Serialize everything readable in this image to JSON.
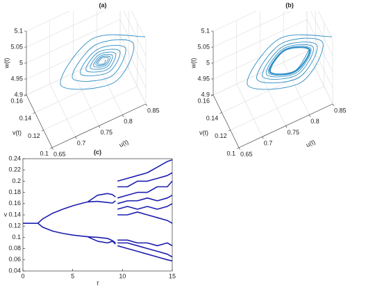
{
  "chart_data": [
    {
      "type": "line3d",
      "title": "(a)",
      "xlabel": "u(t)",
      "ylabel": "v(t)",
      "zlabel": "w(t)",
      "xlim": [
        0.65,
        0.85
      ],
      "ylim": [
        0.1,
        0.16
      ],
      "zlim": [
        4.9,
        5.1
      ],
      "xticks": [
        0.65,
        0.7,
        0.75,
        0.8,
        0.85
      ],
      "yticks": [
        0.1,
        0.12,
        0.14,
        0.16
      ],
      "zticks": [
        4.9,
        4.95,
        5,
        5.05,
        5.1
      ],
      "grid": true,
      "series": [
        {
          "color": "#2b8cc4",
          "x": [
            0.875,
            0.785,
            0.695,
            0.785,
            0.85,
            0.785,
            0.72,
            0.785,
            0.833,
            0.785,
            0.737,
            0.785,
            0.821,
            0.785,
            0.749,
            0.785,
            0.812,
            0.785,
            0.758,
            0.785,
            0.805,
            0.785,
            0.765,
            0.785,
            0.8,
            0.785,
            0.77,
            0.785,
            0.796,
            0.785,
            0.774,
            0.785,
            0.79
          ],
          "y": [
            0.129,
            0.154,
            0.129,
            0.104,
            0.129,
            0.147,
            0.129,
            0.111,
            0.129,
            0.142,
            0.129,
            0.116,
            0.129,
            0.139,
            0.129,
            0.119,
            0.129,
            0.1365,
            0.129,
            0.1215,
            0.129,
            0.1346,
            0.129,
            0.1234,
            0.129,
            0.1332,
            0.129,
            0.1248,
            0.129,
            0.1321,
            0.129,
            0.1259,
            0.129
          ],
          "z": [
            5.014,
            5,
            4.986,
            5,
            5.01,
            5,
            4.99,
            5,
            5.007,
            5,
            4.993,
            5,
            5.005,
            5,
            4.995,
            5,
            5.004,
            5,
            4.996,
            5,
            5.003,
            5,
            4.997,
            5,
            5.002,
            5,
            4.998,
            5,
            5.002,
            5,
            4.998,
            5,
            5
          ]
        }
      ]
    },
    {
      "type": "line3d",
      "title": "(b)",
      "xlabel": "u(t)",
      "ylabel": "v(t)",
      "zlabel": "w(t)",
      "xlim": [
        0.65,
        0.85
      ],
      "ylim": [
        0.1,
        0.16
      ],
      "zlim": [
        4.9,
        5.1
      ],
      "xticks": [
        0.65,
        0.7,
        0.75,
        0.8,
        0.85
      ],
      "yticks": [
        0.1,
        0.12,
        0.14,
        0.16
      ],
      "zticks": [
        4.9,
        4.95,
        5,
        5.05,
        5.1
      ],
      "grid": true,
      "series": [
        {
          "color": "#2b8cc4",
          "x": [
            0.875,
            0.785,
            0.695,
            0.785,
            0.855,
            0.785,
            0.715,
            0.785,
            0.843,
            0.785,
            0.727,
            0.785,
            0.835,
            0.785,
            0.735,
            0.785,
            0.83,
            0.785,
            0.74,
            0.785,
            0.828,
            0.785,
            0.742,
            0.785,
            0.827,
            0.785,
            0.743,
            0.785,
            0.826,
            0.785,
            0.744,
            0.785,
            0.826
          ],
          "y": [
            0.129,
            0.154,
            0.129,
            0.104,
            0.129,
            0.1486,
            0.129,
            0.1094,
            0.129,
            0.1452,
            0.129,
            0.1128,
            0.129,
            0.143,
            0.129,
            0.115,
            0.129,
            0.1416,
            0.129,
            0.1164,
            0.129,
            0.141,
            0.129,
            0.117,
            0.129,
            0.1408,
            0.129,
            0.1172,
            0.129,
            0.1405,
            0.129,
            0.1175,
            0.129
          ],
          "z": [
            5.014,
            5,
            4.986,
            5,
            5.01,
            5,
            4.99,
            5,
            5.009,
            5,
            4.991,
            5,
            5.008,
            5,
            4.992,
            5,
            5.007,
            5,
            4.993,
            5,
            5.006,
            5,
            4.994,
            5,
            5.006,
            5,
            4.994,
            5,
            5.006,
            5,
            4.994,
            5,
            5.006
          ]
        }
      ]
    },
    {
      "type": "bifurcation",
      "title": "(c)",
      "xlabel": "τ",
      "ylabel": "v",
      "xlim": [
        0,
        15
      ],
      "ylim": [
        0.04,
        0.24
      ],
      "xticks": [
        0,
        5,
        10,
        15
      ],
      "yticks": [
        0.04,
        0.06,
        0.08,
        0.1,
        0.12,
        0.14,
        0.16,
        0.18,
        0.2,
        0.22,
        0.24
      ],
      "series": [
        {
          "color": "#1c1cb0",
          "x": [
            0,
            1.5
          ],
          "values": [
            0.125,
            0.125
          ]
        },
        {
          "color": "#1c1cb0",
          "x": [
            1.5,
            2,
            3,
            4,
            5,
            6,
            6.5
          ],
          "values": [
            0.125,
            0.133,
            0.143,
            0.15,
            0.156,
            0.161,
            0.163
          ]
        },
        {
          "color": "#1c1cb0",
          "x": [
            1.5,
            2,
            3,
            4,
            5,
            6,
            6.5
          ],
          "values": [
            0.125,
            0.118,
            0.111,
            0.107,
            0.104,
            0.102,
            0.101
          ]
        },
        {
          "color": "#1c1cb0",
          "x": [
            6.5,
            7.5,
            8.5,
            9,
            9.3
          ],
          "values": [
            0.163,
            0.175,
            0.178,
            0.176,
            0.172
          ]
        },
        {
          "color": "#1c1cb0",
          "x": [
            6.5,
            7.5,
            8.5,
            9,
            9.3
          ],
          "values": [
            0.163,
            0.164,
            0.162,
            0.161,
            0.165
          ]
        },
        {
          "color": "#1c1cb0",
          "x": [
            6.5,
            7.5,
            8.5,
            9,
            9.3
          ],
          "values": [
            0.101,
            0.1,
            0.098,
            0.094,
            0.09
          ]
        },
        {
          "color": "#1c1cb0",
          "x": [
            6.5,
            7.5,
            8.5,
            9,
            9.3
          ],
          "values": [
            0.101,
            0.093,
            0.09,
            0.093,
            0.088
          ]
        },
        {
          "color": "#1c1cb0",
          "x": [
            9.5,
            10.5,
            11.5,
            12.5,
            13.5,
            14.5,
            15
          ],
          "values": [
            0.2,
            0.205,
            0.21,
            0.215,
            0.225,
            0.235,
            0.238
          ]
        },
        {
          "color": "#1c1cb0",
          "x": [
            9.5,
            10.5,
            11.5,
            12.5,
            13.5,
            14.5,
            15
          ],
          "values": [
            0.19,
            0.19,
            0.2,
            0.2,
            0.205,
            0.21,
            0.215
          ]
        },
        {
          "color": "#1c1cb0",
          "x": [
            9.5,
            10.5,
            11.5,
            12.5,
            13.5,
            14.5,
            15
          ],
          "values": [
            0.17,
            0.175,
            0.18,
            0.18,
            0.19,
            0.19,
            0.2
          ]
        },
        {
          "color": "#1c1cb0",
          "x": [
            9.5,
            10.5,
            11.5,
            12.5,
            13.5,
            14.5,
            15
          ],
          "values": [
            0.16,
            0.165,
            0.165,
            0.17,
            0.165,
            0.17,
            0.175
          ]
        },
        {
          "color": "#1c1cb0",
          "x": [
            9.5,
            10.5,
            11.5,
            12.5,
            13.5,
            14.5,
            15
          ],
          "values": [
            0.15,
            0.155,
            0.15,
            0.155,
            0.15,
            0.155,
            0.16
          ]
        },
        {
          "color": "#1c1cb0",
          "x": [
            9.5,
            10.5,
            11.5,
            12.5,
            13.5,
            14.5,
            15
          ],
          "values": [
            0.14,
            0.14,
            0.145,
            0.14,
            0.135,
            0.13,
            0.125
          ]
        },
        {
          "color": "#1c1cb0",
          "x": [
            9.5,
            10.5,
            11.5,
            12.5,
            13.5,
            14.5,
            15
          ],
          "values": [
            0.095,
            0.095,
            0.09,
            0.09,
            0.085,
            0.09,
            0.085
          ]
        },
        {
          "color": "#1c1cb0",
          "x": [
            9.5,
            10.5,
            11.5,
            12.5,
            13.5,
            14.5,
            15
          ],
          "values": [
            0.09,
            0.09,
            0.085,
            0.08,
            0.075,
            0.07,
            0.065
          ]
        },
        {
          "color": "#1c1cb0",
          "x": [
            9.5,
            10.5,
            11.5,
            12.5,
            13.5,
            14.5,
            15
          ],
          "values": [
            0.085,
            0.08,
            0.075,
            0.07,
            0.065,
            0.06,
            0.058
          ]
        }
      ]
    }
  ]
}
